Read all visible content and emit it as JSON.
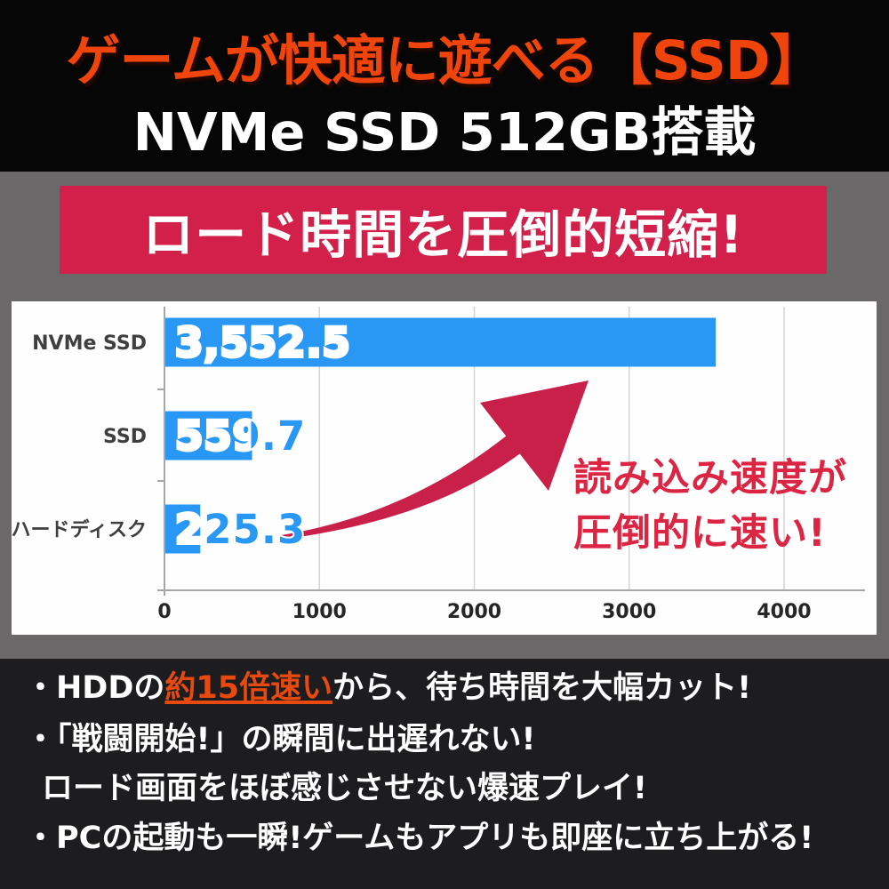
{
  "header": {
    "title": "ゲームが快適に遊べる【SSD】",
    "subtitle": "NVMe SSD 512GB搭載",
    "title_color": "#ef450c"
  },
  "banner": {
    "label": "ロード時間を圧倒的短縮!",
    "bg_color": "#d2204a"
  },
  "chart_data": {
    "type": "bar",
    "orientation": "horizontal",
    "title": "",
    "xlabel": "",
    "ylabel": "",
    "categories": [
      "NVMe SSD",
      "SSD",
      "ハードディスク"
    ],
    "values": [
      3552.5,
      559.7,
      225.3
    ],
    "value_labels": [
      "3,552.5",
      "559.7",
      "225.3"
    ],
    "xlim": [
      0,
      4000
    ],
    "x_ticks": [
      0,
      1000,
      2000,
      3000,
      4000
    ],
    "x_tick_labels": [
      "0",
      "1000",
      "2000",
      "3000",
      "4000"
    ],
    "grid": true,
    "legend": false,
    "bar_color": "#2997f4",
    "gridline_color": "#d6d6d6",
    "axis_color": "#a6a6a6",
    "tick_label_color": "#262626",
    "category_label_color": "#3f3f3f",
    "annotation": {
      "lines": [
        "読み込み速度が",
        "圧倒的に速い!"
      ],
      "color": "#dc2443",
      "arrow_color": "#c9204a"
    }
  },
  "footer": {
    "line1_prefix": "・HDDの",
    "line1_highlight": "約15倍速い",
    "line1_suffix": "から、待ち時間を大幅カット!",
    "line2": "・「戦闘開始!」の瞬間に出遅れない!",
    "line3": "ロード画面をほぼ感じさせない爆速プレイ!",
    "line4": "・PCの起動も一瞬!ゲームもアプリも即座に立ち上がる!",
    "highlight_color": "#e8490f"
  }
}
